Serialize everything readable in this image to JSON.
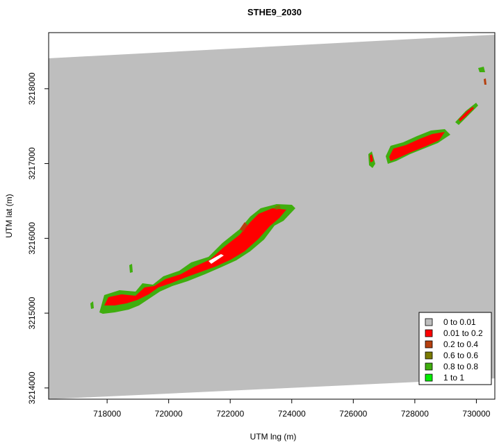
{
  "map": {
    "title": "STHE9_2030",
    "xlabel": "UTM lng (m)",
    "ylabel": "UTM lat (m)",
    "x_ticks": [
      "718000",
      "720000",
      "722000",
      "724000",
      "726000",
      "728000",
      "730000"
    ],
    "y_ticks": [
      "3214000",
      "3215000",
      "3216000",
      "3217000",
      "3218000"
    ],
    "legend": [
      {
        "label": "0 to 0.01",
        "color": "#bebebe"
      },
      {
        "label": "0.01 to 0.2",
        "color": "#ff0000"
      },
      {
        "label": "0.2 to 0.4",
        "color": "#b5400f"
      },
      {
        "label": "0.6 to 0.6",
        "color": "#7a7a00"
      },
      {
        "label": "0.8 to 0.8",
        "color": "#3fae0e"
      },
      {
        "label": "1 to 1",
        "color": "#00ee00"
      }
    ]
  },
  "chart_data": {
    "type": "heatmap",
    "title": "STHE9_2030",
    "xlabel": "UTM lng (m)",
    "ylabel": "UTM lat (m)",
    "xlim": [
      716100,
      730600
    ],
    "ylim": [
      3213850,
      3218750
    ],
    "x_ticks": [
      718000,
      720000,
      722000,
      724000,
      726000,
      728000,
      730000
    ],
    "y_ticks": [
      3214000,
      3215000,
      3216000,
      3217000,
      3218000
    ],
    "legend_position": "bottom-right",
    "classes": [
      "0 to 0.01",
      "0.01 to 0.2",
      "0.2 to 0.4",
      "0.6 to 0.6",
      "0.8 to 0.8",
      "1 to 1"
    ],
    "colors": {
      "background": "#bebebe",
      "low": "#ff0000",
      "mid": "#b5400f",
      "olive": "#7a7a00",
      "high": "#3fae0e",
      "max": "#00ee00"
    }
  }
}
